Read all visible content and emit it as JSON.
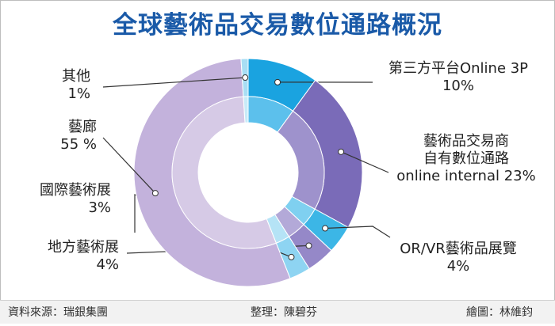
{
  "chart_data": {
    "type": "pie",
    "title": "全球藝術品交易數位通路概況",
    "slices": [
      {
        "name": "第三方平台Online 3P",
        "value_label": "10%",
        "value": 10,
        "color": "#1aa3e0",
        "inner_color": "#5cc0ec"
      },
      {
        "name_lines": [
          "藝術品交易商",
          "自有數位通路",
          "online internal 23%"
        ],
        "name": "藝術品交易商自有數位通路online internal",
        "value_label": "23%",
        "value": 23,
        "color": "#7a6bb8",
        "inner_color": "#9e92cc"
      },
      {
        "name": "OR/VR藝術品展覽",
        "value_label": "4%",
        "value": 4,
        "color": "#3cb6e6",
        "inner_color": "#7fd0f0"
      },
      {
        "name": "地方藝術展",
        "value_label": "4%",
        "value": 4,
        "color": "#9588c8",
        "inner_color": "#b3a9d8"
      },
      {
        "name": "國際藝術展",
        "value_label": "3%",
        "value": 3,
        "color": "#8ed4f2",
        "inner_color": "#b5e3f6"
      },
      {
        "name": "藝廊",
        "value_label": "55 %",
        "value": 55,
        "color": "#c3b2dc",
        "inner_color": "#d6cae6"
      },
      {
        "name": "其他",
        "value_label": "1%",
        "value": 1,
        "color": "#a8def4",
        "inner_color": "#c8ebf8"
      }
    ]
  },
  "footer": {
    "source": "資料來源：瑞銀集團",
    "editor": "整理：陳碧芬",
    "artist": "繪圖：林維鈞"
  }
}
